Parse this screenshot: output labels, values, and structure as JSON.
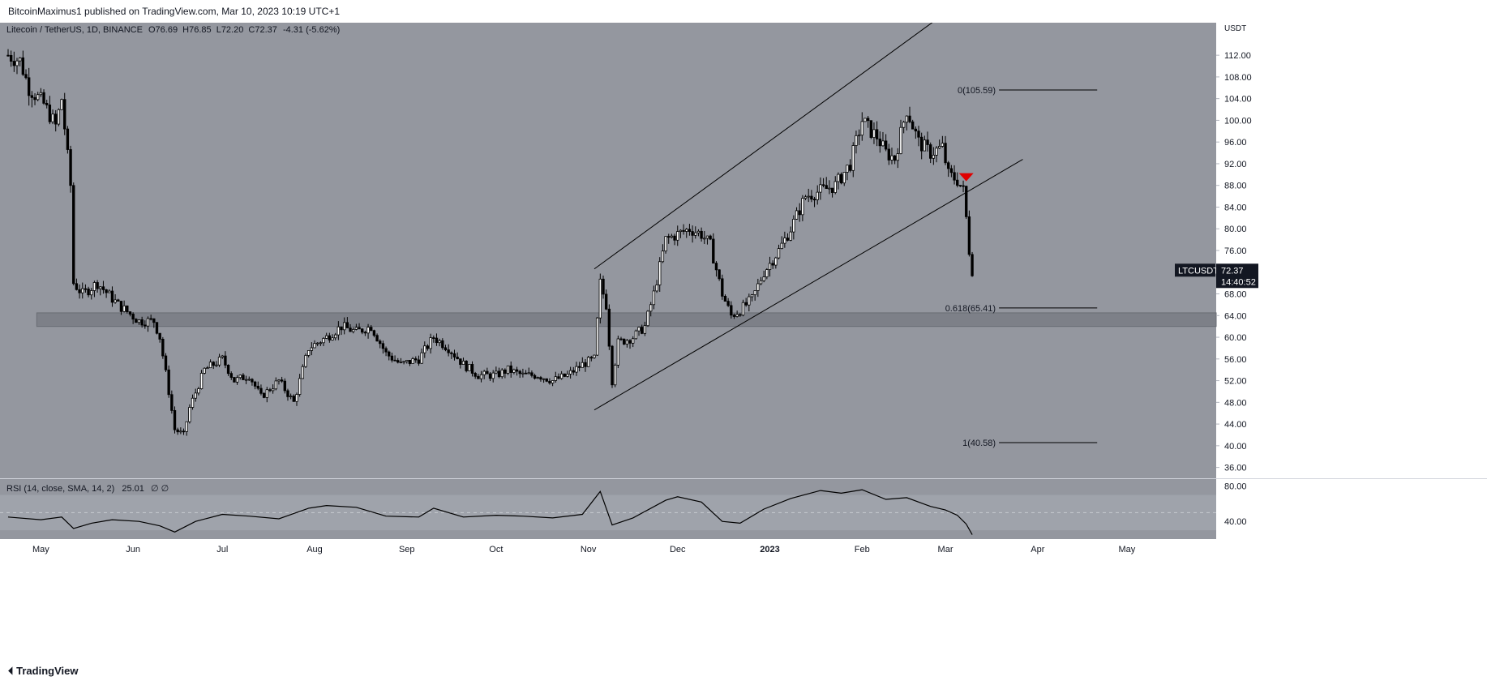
{
  "header": {
    "published_text": "BitcoinMaximus1 published on TradingView.com, Mar 10, 2023 10:19 UTC+1"
  },
  "footer": {
    "brand": "TradingView",
    "logo_icon": "tradingview-logo-icon"
  },
  "colors": {
    "background": "#94979f",
    "rsi_band": "#9fa3ab",
    "support_zone": "#7d8088",
    "candle": "#000000",
    "arrow": "#e00000"
  },
  "chart_data": {
    "type": "candlestick",
    "instrument": {
      "name": "Litecoin / TetherUS, 1D, BINANCE",
      "open_label": "O",
      "open": "76.69",
      "high_label": "H",
      "high": "76.85",
      "low_label": "L",
      "low": "72.20",
      "close_label": "C",
      "close": "72.37",
      "change": "-4.31 (-5.62%)"
    },
    "price_axis": {
      "unit": "USDT",
      "range": [
        34,
        118
      ],
      "ticks": [
        "112.00",
        "108.00",
        "104.00",
        "100.00",
        "96.00",
        "92.00",
        "88.00",
        "84.00",
        "80.00",
        "76.00",
        "72.00",
        "68.00",
        "64.00",
        "60.00",
        "56.00",
        "52.00",
        "48.00",
        "44.00",
        "40.00",
        "36.00"
      ]
    },
    "last_price": {
      "symbol": "LTCUSDT",
      "price": "72.37",
      "countdown": "14:40:52"
    },
    "time_axis": {
      "range": [
        "2022-04-20",
        "2023-05-31"
      ],
      "labels": [
        {
          "label": "May",
          "date": "2022-05-01"
        },
        {
          "label": "Jun",
          "date": "2022-06-01"
        },
        {
          "label": "Jul",
          "date": "2022-07-01"
        },
        {
          "label": "Aug",
          "date": "2022-08-01"
        },
        {
          "label": "Sep",
          "date": "2022-09-01"
        },
        {
          "label": "Oct",
          "date": "2022-10-01"
        },
        {
          "label": "Nov",
          "date": "2022-11-01"
        },
        {
          "label": "Dec",
          "date": "2022-12-01"
        },
        {
          "label": "2023",
          "date": "2023-01-01"
        },
        {
          "label": "Feb",
          "date": "2023-02-01"
        },
        {
          "label": "Mar",
          "date": "2023-03-01"
        },
        {
          "label": "Apr",
          "date": "2023-04-01"
        },
        {
          "label": "May",
          "date": "2023-05-01"
        }
      ]
    },
    "close_path": [
      [
        "2022-04-20",
        112
      ],
      [
        "2022-04-24",
        111
      ],
      [
        "2022-04-27",
        106
      ],
      [
        "2022-05-02",
        103
      ],
      [
        "2022-05-06",
        99
      ],
      [
        "2022-05-08",
        104
      ],
      [
        "2022-05-11",
        88
      ],
      [
        "2022-05-12",
        70
      ],
      [
        "2022-05-15",
        68
      ],
      [
        "2022-05-20",
        70
      ],
      [
        "2022-05-27",
        66
      ],
      [
        "2022-06-03",
        63
      ],
      [
        "2022-06-08",
        63
      ],
      [
        "2022-06-10",
        60
      ],
      [
        "2022-06-13",
        50
      ],
      [
        "2022-06-15",
        43
      ],
      [
        "2022-06-18",
        42
      ],
      [
        "2022-06-20",
        47
      ],
      [
        "2022-06-25",
        54
      ],
      [
        "2022-07-01",
        56
      ],
      [
        "2022-07-05",
        52
      ],
      [
        "2022-07-10",
        53
      ],
      [
        "2022-07-14",
        49
      ],
      [
        "2022-07-20",
        52
      ],
      [
        "2022-07-25",
        48
      ],
      [
        "2022-07-30",
        58
      ],
      [
        "2022-08-05",
        60
      ],
      [
        "2022-08-10",
        62
      ],
      [
        "2022-08-15",
        61
      ],
      [
        "2022-08-20",
        62
      ],
      [
        "2022-08-25",
        57
      ],
      [
        "2022-08-30",
        55
      ],
      [
        "2022-09-05",
        56
      ],
      [
        "2022-09-10",
        60
      ],
      [
        "2022-09-15",
        58
      ],
      [
        "2022-09-20",
        55
      ],
      [
        "2022-09-25",
        53
      ],
      [
        "2022-10-01",
        53
      ],
      [
        "2022-10-05",
        54
      ],
      [
        "2022-10-10",
        53
      ],
      [
        "2022-10-15",
        53
      ],
      [
        "2022-10-20",
        52
      ],
      [
        "2022-10-25",
        53
      ],
      [
        "2022-10-30",
        55
      ],
      [
        "2022-11-03",
        56
      ],
      [
        "2022-11-05",
        70
      ],
      [
        "2022-11-07",
        66
      ],
      [
        "2022-11-09",
        52
      ],
      [
        "2022-11-11",
        59
      ],
      [
        "2022-11-16",
        60
      ],
      [
        "2022-11-20",
        62
      ],
      [
        "2022-11-23",
        68
      ],
      [
        "2022-11-27",
        78
      ],
      [
        "2022-12-01",
        79
      ],
      [
        "2022-12-05",
        80
      ],
      [
        "2022-12-09",
        79
      ],
      [
        "2022-12-12",
        77
      ],
      [
        "2022-12-16",
        68
      ],
      [
        "2022-12-19",
        64
      ],
      [
        "2022-12-22",
        65
      ],
      [
        "2022-12-26",
        67
      ],
      [
        "2022-12-30",
        72
      ],
      [
        "2023-01-04",
        76
      ],
      [
        "2023-01-08",
        80
      ],
      [
        "2023-01-13",
        86
      ],
      [
        "2023-01-18",
        87
      ],
      [
        "2023-01-23",
        88
      ],
      [
        "2023-01-28",
        92
      ],
      [
        "2023-02-01",
        100
      ],
      [
        "2023-02-04",
        98
      ],
      [
        "2023-02-06",
        97
      ],
      [
        "2023-02-09",
        94
      ],
      [
        "2023-02-12",
        93
      ],
      [
        "2023-02-16",
        102
      ],
      [
        "2023-02-20",
        96
      ],
      [
        "2023-02-24",
        94
      ],
      [
        "2023-02-28",
        95
      ],
      [
        "2023-03-02",
        90
      ],
      [
        "2023-03-05",
        89
      ],
      [
        "2023-03-07",
        87
      ],
      [
        "2023-03-08",
        82
      ],
      [
        "2023-03-09",
        76
      ],
      [
        "2023-03-10",
        72.37
      ]
    ],
    "channel": {
      "lower": [
        [
          "2022-11-03",
          46.6
        ],
        [
          "2023-03-27",
          92.8
        ]
      ],
      "upper": [
        [
          "2022-11-03",
          72.6
        ],
        [
          "2023-02-27",
          119
        ]
      ]
    },
    "support_zone": {
      "from": "2022-04-20",
      "to": "2023-05-31",
      "low": 62,
      "high": 64.5
    },
    "fib_levels": [
      {
        "label": "0(105.59)",
        "value": 105.59,
        "from": "2023-03-19",
        "to": "2023-04-21"
      },
      {
        "label": "0.618(65.41)",
        "value": 65.41,
        "from": "2023-03-19",
        "to": "2023-04-21"
      },
      {
        "label": "1(40.58)",
        "value": 40.58,
        "from": "2023-03-19",
        "to": "2023-04-21"
      }
    ],
    "arrow": {
      "date": "2023-03-08",
      "price": 89.5,
      "direction": "down"
    },
    "rsi": {
      "label": "RSI (14, close, SMA, 14, 2)",
      "value": "25.01",
      "extra": "∅ ∅",
      "range": [
        20,
        88
      ],
      "band": [
        30,
        70
      ],
      "ticks": [
        "80.00",
        "40.00"
      ],
      "path": [
        [
          "2022-04-20",
          45
        ],
        [
          "2022-05-01",
          42
        ],
        [
          "2022-05-08",
          45
        ],
        [
          "2022-05-12",
          32
        ],
        [
          "2022-05-18",
          38
        ],
        [
          "2022-05-25",
          42
        ],
        [
          "2022-06-03",
          40
        ],
        [
          "2022-06-10",
          35
        ],
        [
          "2022-06-15",
          28
        ],
        [
          "2022-06-22",
          40
        ],
        [
          "2022-07-01",
          48
        ],
        [
          "2022-07-10",
          46
        ],
        [
          "2022-07-20",
          43
        ],
        [
          "2022-07-30",
          55
        ],
        [
          "2022-08-05",
          58
        ],
        [
          "2022-08-15",
          56
        ],
        [
          "2022-08-25",
          46
        ],
        [
          "2022-09-05",
          45
        ],
        [
          "2022-09-10",
          55
        ],
        [
          "2022-09-20",
          45
        ],
        [
          "2022-10-01",
          47
        ],
        [
          "2022-10-10",
          46
        ],
        [
          "2022-10-20",
          44
        ],
        [
          "2022-10-30",
          48
        ],
        [
          "2022-11-05",
          74
        ],
        [
          "2022-11-09",
          36
        ],
        [
          "2022-11-16",
          44
        ],
        [
          "2022-11-27",
          64
        ],
        [
          "2022-12-01",
          68
        ],
        [
          "2022-12-09",
          62
        ],
        [
          "2022-12-16",
          40
        ],
        [
          "2022-12-22",
          38
        ],
        [
          "2022-12-30",
          54
        ],
        [
          "2023-01-08",
          66
        ],
        [
          "2023-01-18",
          75
        ],
        [
          "2023-01-25",
          72
        ],
        [
          "2023-02-01",
          76
        ],
        [
          "2023-02-09",
          65
        ],
        [
          "2023-02-16",
          67
        ],
        [
          "2023-02-24",
          57
        ],
        [
          "2023-03-01",
          53
        ],
        [
          "2023-03-05",
          47
        ],
        [
          "2023-03-08",
          37
        ],
        [
          "2023-03-10",
          25
        ]
      ]
    }
  }
}
